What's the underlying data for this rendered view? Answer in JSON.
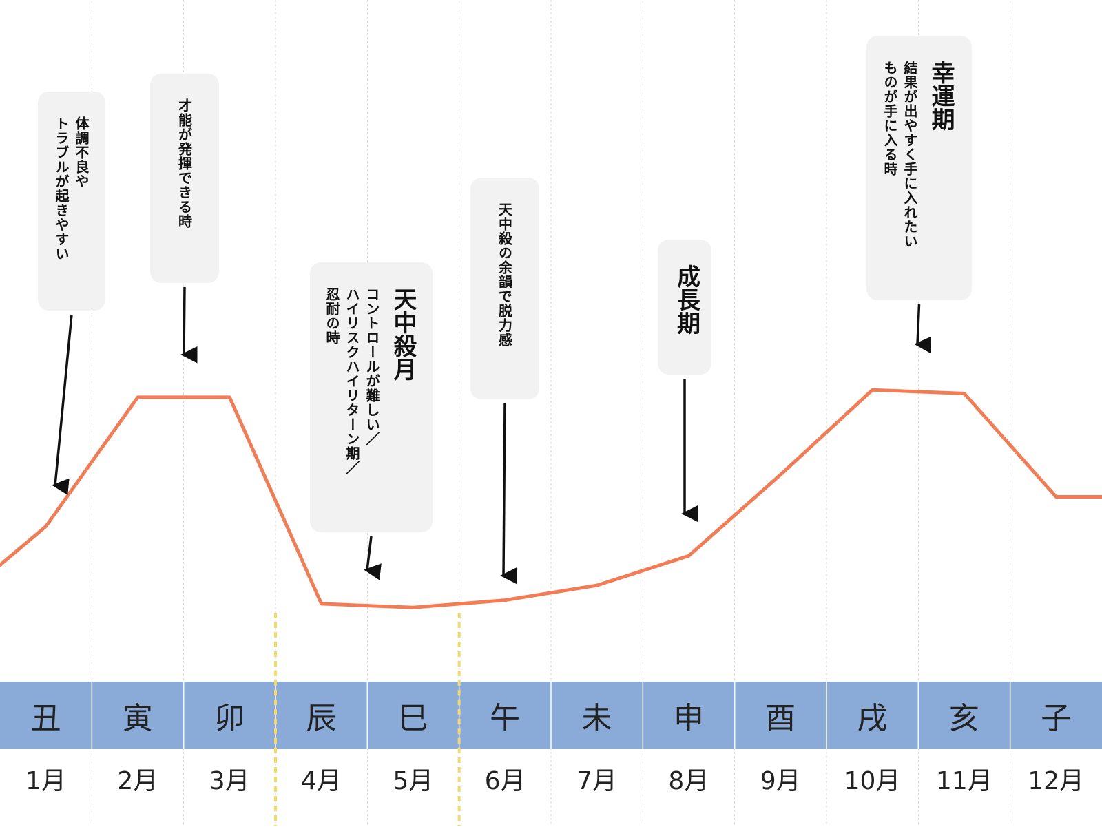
{
  "chart_data": {
    "type": "line",
    "x": [
      "1月",
      "2月",
      "3月",
      "4月",
      "5月",
      "6月",
      "7月",
      "8月",
      "9月",
      "10月",
      "11月",
      "12月"
    ],
    "zodiac": [
      "丑",
      "寅",
      "卯",
      "辰",
      "巳",
      "午",
      "未",
      "申",
      "酉",
      "戌",
      "亥",
      "子"
    ],
    "series": [
      {
        "values": [
          2.4,
          5.9,
          5.9,
          0.3,
          0.2,
          0.4,
          0.8,
          1.6,
          3.8,
          6.1,
          6.0,
          3.2
        ]
      }
    ],
    "ylim": [
      0,
      10
    ],
    "grid": true,
    "line_color": "#f47c54",
    "band_color": "#8aabd8",
    "tenchusatsu_marker_color": "#f5d96b",
    "tenchusatsu_months": [
      "4月",
      "5月"
    ],
    "annotations": [
      {
        "month": "1月",
        "title": "",
        "lines": [
          "体調不良や",
          "トラブルが起きやすい"
        ]
      },
      {
        "month": "2月",
        "title": "",
        "lines": [
          "才能が発揮できる時"
        ]
      },
      {
        "month": "4月",
        "title": "天中殺月",
        "lines": [
          "コントロールが難しい／",
          "ハイリスクハイリターン期／",
          "忍耐の時"
        ]
      },
      {
        "month": "6月",
        "title": "",
        "lines": [
          "天中殺の余韻で脱力感"
        ]
      },
      {
        "month": "8月",
        "title": "成長期",
        "lines": []
      },
      {
        "month": "10月",
        "title": "幸運期",
        "lines": [
          "結果が出やすく手に入れたい",
          "ものが手に入る時"
        ]
      }
    ]
  }
}
